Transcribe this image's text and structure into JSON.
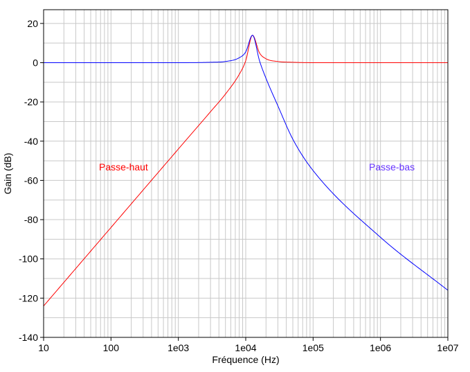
{
  "chart_data": {
    "type": "line",
    "title": "",
    "xlabel": "Fréquence (Hz)",
    "ylabel": "Gain (dB)",
    "x_scale": "log",
    "xlim": [
      10,
      10000000
    ],
    "ylim": [
      -140,
      27
    ],
    "grid": true,
    "x_ticks": [
      10,
      100,
      1000,
      10000,
      100000,
      1000000,
      10000000
    ],
    "x_tick_labels": [
      "10",
      "100",
      "1e03",
      "1e04",
      "1e05",
      "1e06",
      "1e07"
    ],
    "y_ticks": [
      20,
      0,
      -20,
      -40,
      -60,
      -80,
      -100,
      -120,
      -140
    ],
    "y_tick_labels": [
      "20",
      "0",
      "-20",
      "-40",
      "-60",
      "-80",
      "-100",
      "-120",
      "-140"
    ],
    "series": [
      {
        "name": "Passe-haut",
        "color": "#ff0000",
        "x": [
          10,
          100,
          1000,
          3000,
          5000,
          8000,
          10000,
          12600,
          16000,
          20000,
          30000,
          50000,
          100000,
          1000000,
          10000000
        ],
        "y": [
          -124,
          -84,
          -44,
          -25,
          -16,
          -6,
          1,
          14,
          5,
          2,
          0.6,
          0.2,
          0,
          0,
          0
        ]
      },
      {
        "name": "Passe-bas",
        "color": "#0000ff",
        "x": [
          10,
          100,
          1000,
          3000,
          5000,
          8000,
          10000,
          12600,
          16000,
          20000,
          30000,
          50000,
          100000,
          1000000,
          10000000
        ],
        "y": [
          0,
          0,
          0,
          0.2,
          0.6,
          2.5,
          5.5,
          14,
          1,
          -8,
          -22,
          -39,
          -55,
          -89,
          -116
        ]
      }
    ],
    "annotations": [
      {
        "text": "Passe-haut",
        "color": "#ff0000"
      },
      {
        "text": "Passe-bas",
        "color": "#6633ff"
      }
    ]
  }
}
